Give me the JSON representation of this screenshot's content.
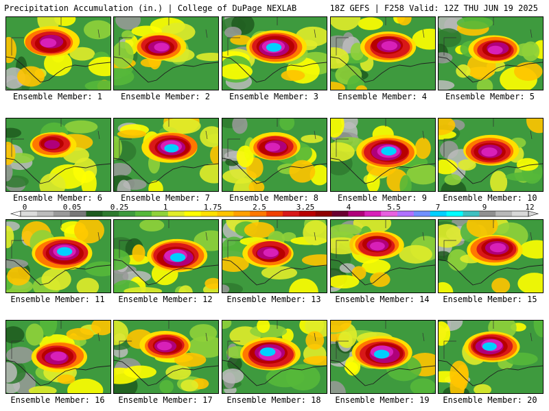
{
  "header": {
    "title": "Precipitation Accumulation (in.) | College of DuPage NEXLAB",
    "run_info": "18Z GEFS | F258 Valid: 12Z THU JUN 19 2025"
  },
  "colorbar": {
    "tick_labels": [
      "0",
      "0.05",
      "0.25",
      "1",
      "1.75",
      "2.5",
      "3.25",
      "4",
      "5.5",
      "7",
      "9",
      "12"
    ],
    "colors": [
      "#dcdcdc",
      "#bcbcbc",
      "#9a9a9a",
      "#787878",
      "#1e5a1e",
      "#2f7a2f",
      "#3e9a3e",
      "#55b83a",
      "#8fd23a",
      "#e0ec2a",
      "#ffff00",
      "#ffe000",
      "#ffc400",
      "#ffa000",
      "#ff7800",
      "#f04000",
      "#d81818",
      "#b80000",
      "#8e0000",
      "#6a0030",
      "#b0007a",
      "#d820b8",
      "#e860e0",
      "#b070ff",
      "#7090ff",
      "#00d0ff",
      "#00ffff",
      "#40c0c0",
      "#909090",
      "#b8b8b8",
      "#d8d8d8"
    ]
  },
  "members": [
    {
      "label": "Ensemble Member: 1",
      "core": [
        0.42,
        0.35
      ],
      "spread": 0.55,
      "wet": 0.55
    },
    {
      "label": "Ensemble Member: 2",
      "core": [
        0.45,
        0.4
      ],
      "spread": 0.5,
      "wet": 0.5
    },
    {
      "label": "Ensemble Member: 3",
      "core": [
        0.5,
        0.42
      ],
      "spread": 0.6,
      "wet": 0.75
    },
    {
      "label": "Ensemble Member: 4",
      "core": [
        0.55,
        0.4
      ],
      "spread": 0.55,
      "wet": 0.6
    },
    {
      "label": "Ensemble Member: 5",
      "core": [
        0.55,
        0.45
      ],
      "spread": 0.5,
      "wet": 0.55
    },
    {
      "label": "Ensemble Member: 6",
      "core": [
        0.45,
        0.35
      ],
      "spread": 0.45,
      "wet": 0.4
    },
    {
      "label": "Ensemble Member: 7",
      "core": [
        0.55,
        0.4
      ],
      "spread": 0.55,
      "wet": 0.7
    },
    {
      "label": "Ensemble Member: 8",
      "core": [
        0.5,
        0.4
      ],
      "spread": 0.5,
      "wet": 0.5
    },
    {
      "label": "Ensemble Member: 9",
      "core": [
        0.55,
        0.45
      ],
      "spread": 0.6,
      "wet": 0.8
    },
    {
      "label": "Ensemble Member: 10",
      "core": [
        0.5,
        0.45
      ],
      "spread": 0.55,
      "wet": 0.6
    },
    {
      "label": "Ensemble Member: 11",
      "core": [
        0.55,
        0.45
      ],
      "spread": 0.6,
      "wet": 0.75
    },
    {
      "label": "Ensemble Member: 12",
      "core": [
        0.6,
        0.5
      ],
      "spread": 0.6,
      "wet": 0.75
    },
    {
      "label": "Ensemble Member: 13",
      "core": [
        0.45,
        0.45
      ],
      "spread": 0.5,
      "wet": 0.5
    },
    {
      "label": "Ensemble Member: 14",
      "core": [
        0.45,
        0.35
      ],
      "spread": 0.5,
      "wet": 0.6
    },
    {
      "label": "Ensemble Member: 15",
      "core": [
        0.55,
        0.4
      ],
      "spread": 0.55,
      "wet": 0.65
    },
    {
      "label": "Ensemble Member: 16",
      "core": [
        0.5,
        0.5
      ],
      "spread": 0.55,
      "wet": 0.65
    },
    {
      "label": "Ensemble Member: 17",
      "core": [
        0.5,
        0.35
      ],
      "spread": 0.5,
      "wet": 0.6
    },
    {
      "label": "Ensemble Member: 18",
      "core": [
        0.45,
        0.45
      ],
      "spread": 0.6,
      "wet": 0.8
    },
    {
      "label": "Ensemble Member: 19",
      "core": [
        0.5,
        0.45
      ],
      "spread": 0.6,
      "wet": 0.8
    },
    {
      "label": "Ensemble Member: 20",
      "core": [
        0.5,
        0.35
      ],
      "spread": 0.55,
      "wet": 0.7
    }
  ]
}
